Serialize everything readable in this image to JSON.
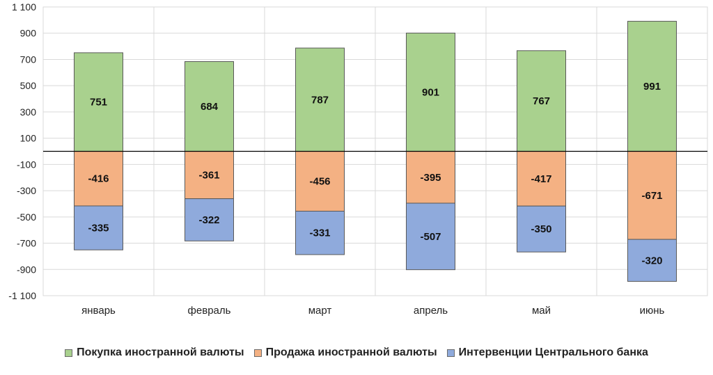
{
  "chart_data": {
    "type": "bar",
    "stacked": true,
    "categories": [
      "январь",
      "февраль",
      "март",
      "апрель",
      "май",
      "июнь"
    ],
    "series": [
      {
        "name": "Покупка иностранной валюты",
        "values": [
          751,
          684,
          787,
          901,
          767,
          991
        ],
        "color": "#a9d18e"
      },
      {
        "name": "Продажа иностранной валюты",
        "values": [
          -416,
          -361,
          -456,
          -395,
          -417,
          -671
        ],
        "color": "#f4b183"
      },
      {
        "name": "Интервенции Центрального банка",
        "values": [
          -335,
          -322,
          -331,
          -507,
          -350,
          -320
        ],
        "color": "#8faadc"
      }
    ],
    "yticks": [
      "1 100",
      "900",
      "700",
      "500",
      "300",
      "100",
      "-100",
      "-300",
      "-500",
      "-700",
      "-900",
      "-1 100"
    ],
    "ylim": [
      -1100,
      1100
    ],
    "ystep": 200,
    "grid": true,
    "legend_position": "bottom"
  }
}
